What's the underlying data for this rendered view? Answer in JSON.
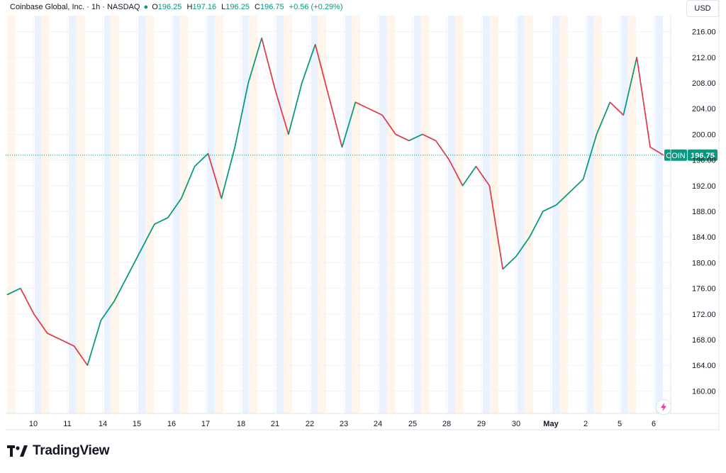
{
  "header": {
    "title": "Coinbase Global, Inc. · 1h · NASDAQ",
    "open_label": "O",
    "open": "196.25",
    "high_label": "H",
    "high": "197.16",
    "low_label": "L",
    "low": "196.25",
    "close_label": "C",
    "close": "196.75",
    "change": "+0.56 (+0.29%)"
  },
  "currency": "USD",
  "brand": "TradingView",
  "colors": {
    "up": "#089981",
    "down": "#f23645",
    "premarket": "#fff5ea",
    "afterhours": "#eaf1ff",
    "grid": "#f0f3fa",
    "text": "#131722"
  },
  "chart_data": {
    "type": "line",
    "symbol": "COIN",
    "last_price": 196.75,
    "price_label": "196.75",
    "ylim": [
      156.5,
      218.5
    ],
    "y_ticks": [
      "216.00",
      "212.00",
      "208.00",
      "204.00",
      "200.00",
      "196.00",
      "192.00",
      "188.00",
      "184.00",
      "180.00",
      "176.00",
      "172.00",
      "168.00",
      "164.00",
      "160.00"
    ],
    "x_tick_labels": [
      "10",
      "11",
      "14",
      "15",
      "16",
      "17",
      "18",
      "21",
      "22",
      "23",
      "24",
      "25",
      "28",
      "29",
      "30",
      "May",
      "2",
      "5",
      "6"
    ],
    "series": [
      {
        "values": [
          175,
          176,
          172,
          169,
          168,
          167,
          164,
          171,
          174,
          178,
          182,
          186,
          187,
          190,
          195,
          197,
          190,
          198,
          208,
          215,
          207,
          200,
          208,
          214,
          206,
          198,
          205,
          204,
          203,
          200,
          199,
          200,
          199,
          196,
          192,
          195,
          192,
          179,
          181,
          184,
          188,
          189,
          191,
          193,
          200,
          205,
          203,
          212,
          198,
          196.75
        ]
      }
    ]
  }
}
